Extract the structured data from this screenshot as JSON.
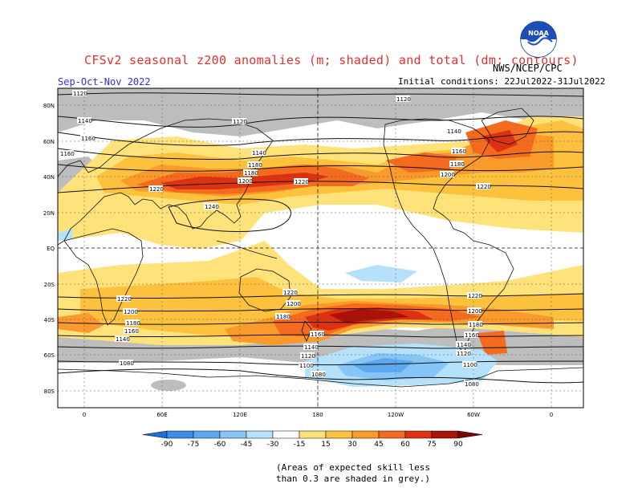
{
  "header": {
    "title": "CFSv2 seasonal z200 anomalies (m; shaded) and total (dm; contours)",
    "agency": "NWS/NCEP/CPC",
    "season": "Sep-Oct-Nov 2022",
    "initial_conditions": "Initial conditions: 22Jul2022-31Jul2022",
    "logo_text": "NOAA"
  },
  "map": {
    "lat_labels": [
      "80N",
      "60N",
      "40N",
      "20N",
      "EQ",
      "20S",
      "40S",
      "60S",
      "80S"
    ],
    "lon_labels": [
      "0",
      "60E",
      "120E",
      "180",
      "120W",
      "60W",
      "0"
    ],
    "contour_labels": [
      "1120",
      "1140",
      "1160",
      "1180",
      "1200",
      "1220",
      "1240",
      "1080",
      "1100"
    ]
  },
  "colorbar": {
    "ticks": [
      "-90",
      "-75",
      "-60",
      "-45",
      "-30",
      "-15",
      "15",
      "30",
      "45",
      "60",
      "75",
      "90"
    ],
    "colors": [
      "#1e6fdb",
      "#3d8ce8",
      "#5ea8f0",
      "#86c5f5",
      "#b5e2fa",
      "#ffffff",
      "#ffe27a",
      "#fdc23d",
      "#f99a2a",
      "#f46a1f",
      "#dc3212",
      "#aa1108",
      "#7a0505"
    ]
  },
  "footnote": {
    "line1": "(Areas of expected skill less",
    "line2": "than 0.3 are shaded in grey.)"
  },
  "colors": {
    "title": "#e03030",
    "season": "#3030e0",
    "grey": "#bdbdbd"
  }
}
